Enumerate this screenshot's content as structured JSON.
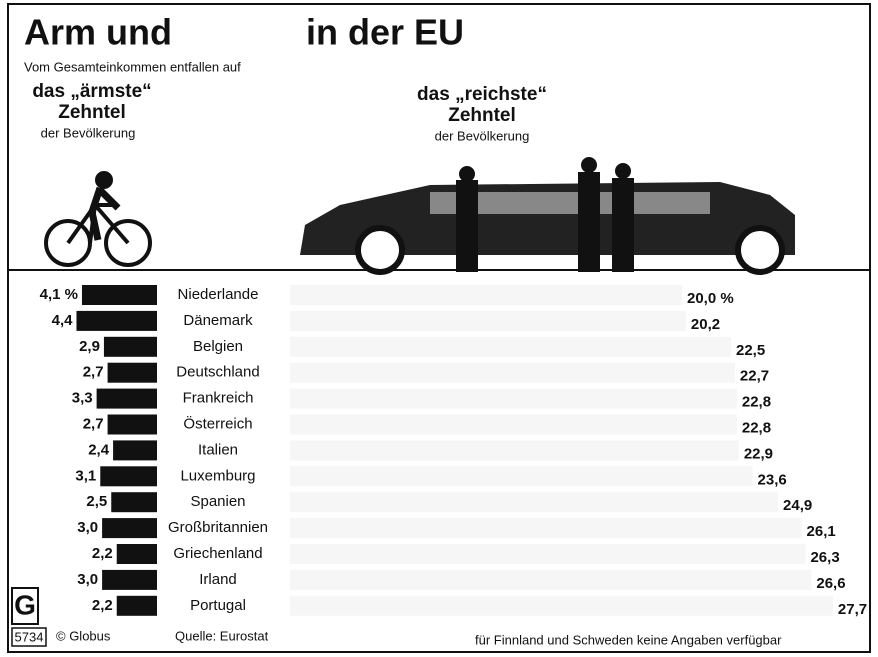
{
  "chart_data": {
    "type": "butterfly-bar",
    "title": "Arm und",
    "title_end": "in der EU",
    "subtitle": "Vom Gesamteinkommen entfallen auf",
    "categories": [
      "Niederlande",
      "Dänemark",
      "Belgien",
      "Deutschland",
      "Frankreich",
      "Österreich",
      "Italien",
      "Luxemburg",
      "Spanien",
      "Großbritannien",
      "Griechenland",
      "Irland",
      "Portugal"
    ],
    "series": [
      {
        "name": "das „ärmste“",
        "name_2": "Zehntel",
        "name_3": "der Bevölkerung",
        "color": "#111111",
        "values": [
          4.1,
          4.4,
          2.9,
          2.7,
          3.3,
          2.7,
          2.4,
          3.1,
          2.5,
          3.0,
          2.2,
          3.0,
          2.2
        ],
        "value_labels": [
          "4,1 %",
          "4,4",
          "2,9",
          "2,7",
          "3,3",
          "2,7",
          "2,4",
          "3,1",
          "2,5",
          "3,0",
          "2,2",
          "3,0",
          "2,2"
        ]
      },
      {
        "name": "das „reichste“",
        "name_2": "Zehntel",
        "name_3": "der Bevölkerung",
        "color": "#f6f6f6",
        "values": [
          20.0,
          20.2,
          22.5,
          22.7,
          22.8,
          22.8,
          22.9,
          23.6,
          24.9,
          26.1,
          26.3,
          26.6,
          27.7
        ],
        "value_labels": [
          "20,0 %",
          "20,2",
          "22,5",
          "22,7",
          "22,8",
          "22,8",
          "22,9",
          "23,6",
          "24,9",
          "26,1",
          "26,3",
          "26,6",
          "27,7"
        ]
      }
    ],
    "logo": "G",
    "code": "5734",
    "credit": "© Globus",
    "source": "Quelle: Eurostat",
    "note": "für Finnland und Schweden keine Angaben verfügbar"
  }
}
